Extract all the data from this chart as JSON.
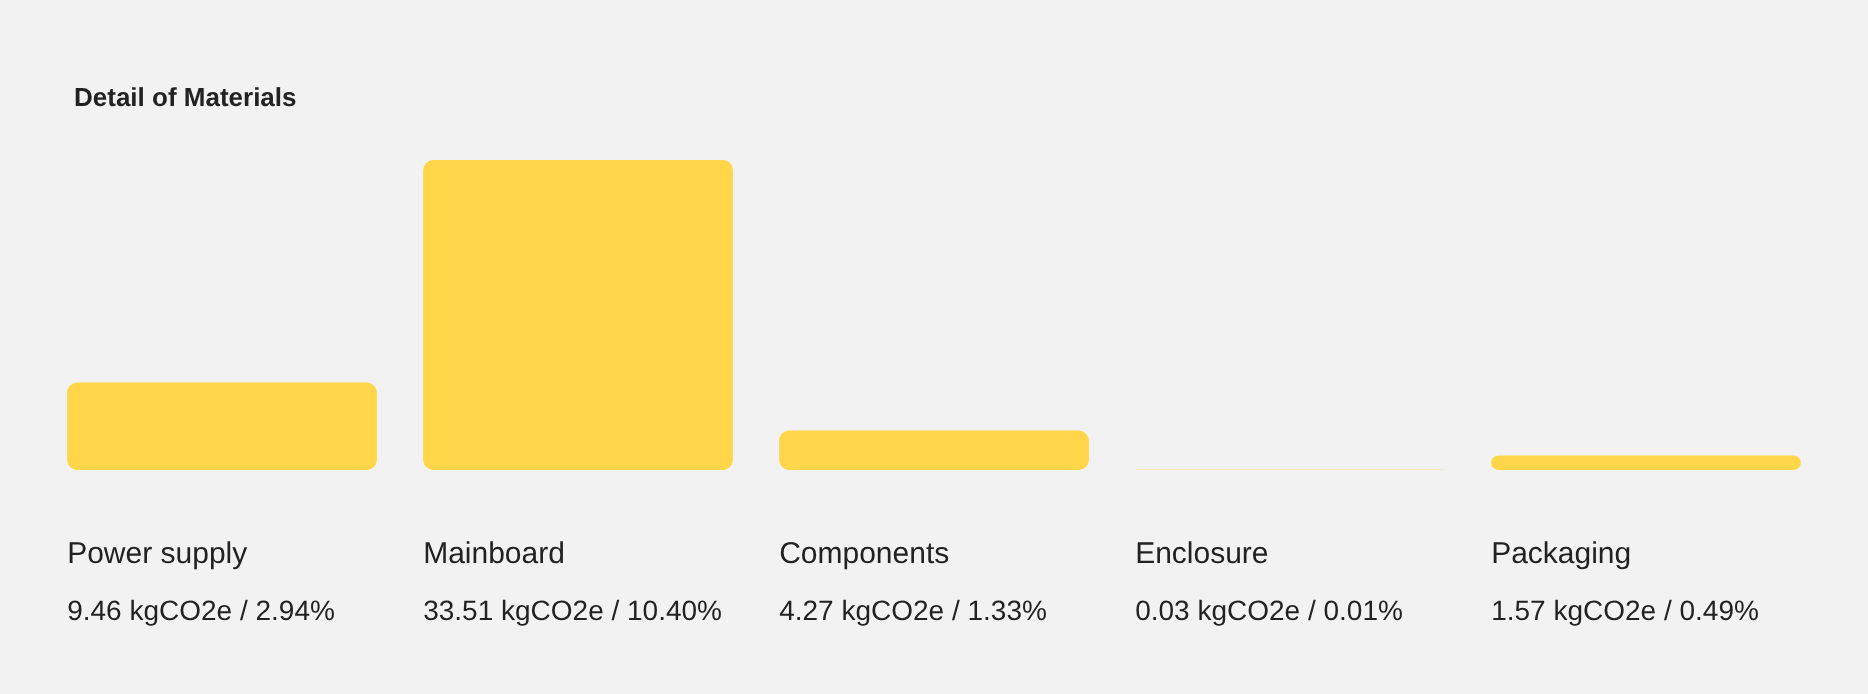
{
  "chart_data": {
    "type": "bar",
    "title": "Detail of Materials",
    "categories": [
      "Power supply",
      "Mainboard",
      "Components",
      "Enclosure",
      "Packaging"
    ],
    "values": [
      9.46,
      33.51,
      4.27,
      0.03,
      1.57
    ],
    "value_labels": [
      "9.46 kgCO2e / 2.94%",
      "33.51 kgCO2e / 10.40%",
      "4.27 kgCO2e / 1.33%",
      "0.03 kgCO2e / 0.01%",
      "1.57 kgCO2e / 0.49%"
    ],
    "color": "#ffd54a"
  }
}
